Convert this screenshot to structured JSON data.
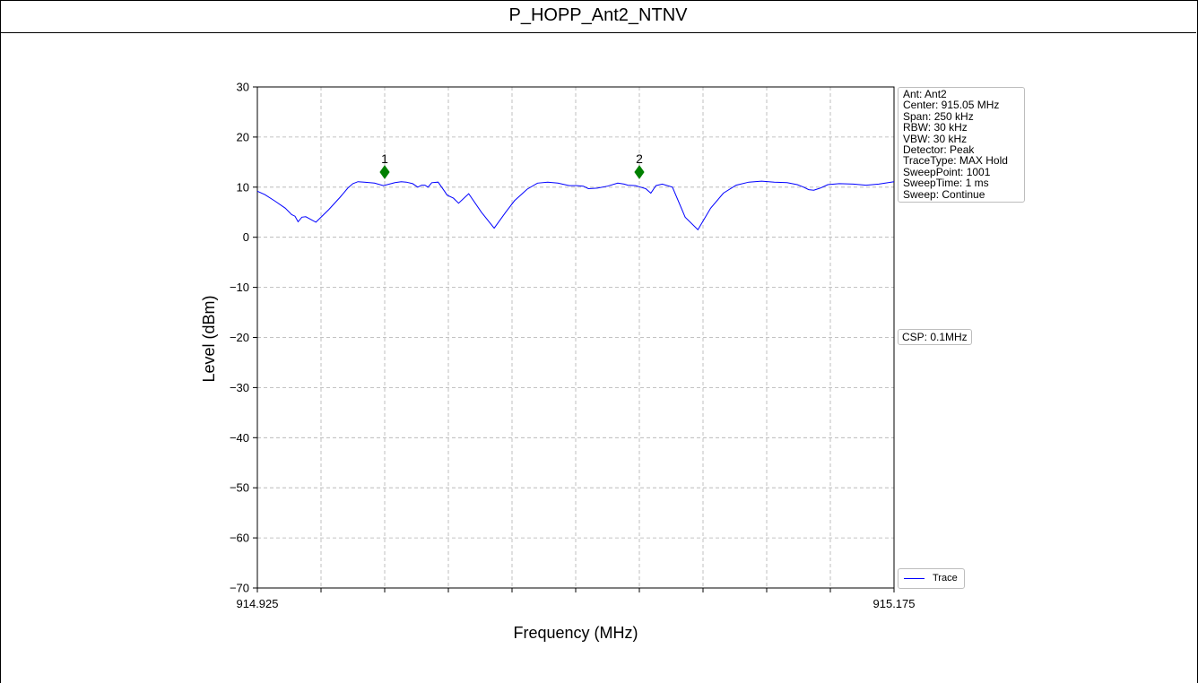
{
  "title": "P_HOPP_Ant2_NTNV",
  "info_lines": [
    "Ant: Ant2",
    "Center: 915.05 MHz",
    "Span: 250 kHz",
    "RBW: 30 kHz",
    "VBW: 30 kHz",
    "Detector: Peak",
    "TraceType: MAX Hold",
    "SweepPoint: 1001",
    "SweepTime: 1 ms",
    "Sweep: Continue"
  ],
  "csp_label": "CSP: 0.1MHz",
  "legend_label": "Trace",
  "colors": {
    "trace": "#0000ff",
    "marker": "#008000",
    "grid": "#b0b0b0"
  },
  "chart_data": {
    "type": "line",
    "title": "P_HOPP_Ant2_NTNV",
    "xlabel": "Frequency (MHz)",
    "ylabel": "Level (dBm)",
    "xlim": [
      914.925,
      915.175
    ],
    "ylim": [
      -70,
      30
    ],
    "x_tick_labels": [
      "914.925",
      "915.175"
    ],
    "y_ticks": [
      30,
      20,
      10,
      0,
      -10,
      -20,
      -30,
      -40,
      -50,
      -60,
      -70
    ],
    "y_tick_labels": [
      "30",
      "20",
      "10",
      "0",
      "−10",
      "−20",
      "−30",
      "−40",
      "−50",
      "−60",
      "−70"
    ],
    "grid": true,
    "legend": "bottom-right outside",
    "series": [
      {
        "name": "Trace",
        "x": [
          914.925,
          914.928,
          914.932,
          914.936,
          914.9385,
          914.9398,
          914.941,
          914.9425,
          914.944,
          914.948,
          914.953,
          914.9575,
          914.9605,
          914.9625,
          914.9645,
          914.967,
          914.971,
          914.9745,
          914.979,
          914.9815,
          914.9835,
          914.986,
          914.988,
          914.9895,
          914.9908,
          914.992,
          914.9935,
          914.996,
          914.9985,
          914.9995,
          915.002,
          915.004,
          915.008,
          915.013,
          915.018,
          915.0225,
          915.026,
          915.031,
          915.035,
          915.039,
          915.043,
          915.0475,
          915.0505,
          915.053,
          915.055,
          915.0585,
          915.0625,
          915.0665,
          915.069,
          915.0705,
          915.0735,
          915.0755,
          915.0775,
          915.0795,
          915.0815,
          915.084,
          915.088,
          915.093,
          915.098,
          915.103,
          915.108,
          915.113,
          915.118,
          915.123,
          915.128,
          915.133,
          915.137,
          915.1395,
          915.1415,
          915.1435,
          915.146,
          915.149,
          915.1535,
          915.159,
          915.164,
          915.169,
          915.175
        ],
        "values": [
          9.2,
          8.5,
          7.2,
          5.8,
          4.5,
          4.2,
          3.1,
          4.0,
          4.1,
          3.0,
          5.5,
          8.0,
          9.8,
          10.7,
          11.1,
          11.0,
          10.8,
          10.3,
          10.9,
          11.1,
          11.0,
          10.7,
          10.0,
          10.4,
          10.4,
          10.0,
          10.9,
          11.0,
          9.2,
          8.4,
          7.8,
          6.8,
          8.7,
          5.0,
          1.8,
          5.0,
          7.3,
          9.6,
          10.8,
          11.0,
          10.8,
          10.3,
          10.3,
          10.2,
          9.7,
          9.8,
          10.2,
          10.8,
          10.6,
          10.4,
          10.3,
          10.0,
          9.7,
          8.8,
          10.3,
          10.6,
          10.0,
          4.0,
          1.5,
          5.8,
          8.8,
          10.4,
          11.0,
          11.2,
          11.0,
          10.9,
          10.5,
          10.0,
          9.5,
          9.4,
          9.8,
          10.5,
          10.7,
          10.6,
          10.4,
          10.6,
          11.1
        ]
      }
    ],
    "markers": [
      {
        "label": "1",
        "x": 914.975,
        "y": 13.0
      },
      {
        "label": "2",
        "x": 915.075,
        "y": 13.0
      }
    ]
  }
}
